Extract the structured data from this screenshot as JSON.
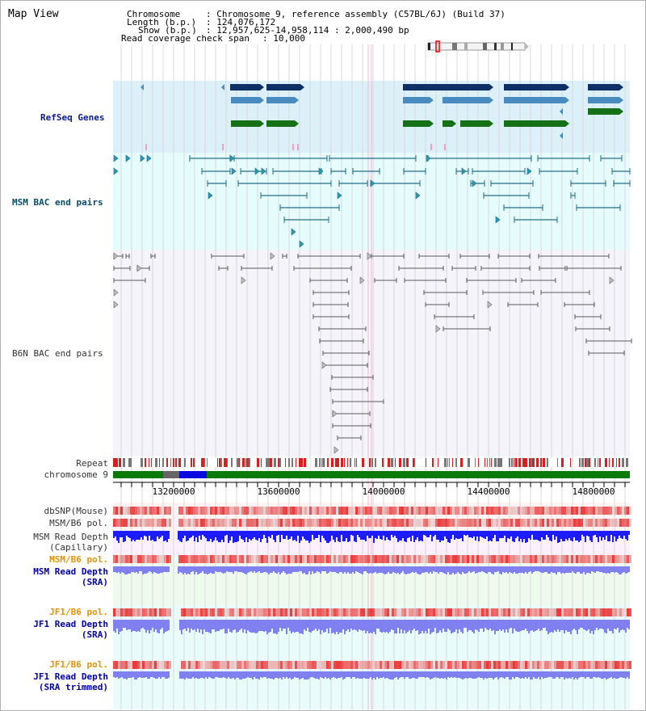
{
  "title": "Map View",
  "header": {
    "chromosome_key": "Chromosome",
    "chromosome_value": ": Chromosome 9, reference assembly (C57BL/6J) (Build 37)",
    "length_key": "Length (b.p.)",
    "length_value": ": 124,076,172",
    "show_key": "Show (b.p.)",
    "show_value": ": 12,957,625-14,958,114 : 2,000,490 bp",
    "coverage_key": "Read coverage check span",
    "coverage_value": ": 10,000"
  },
  "bands": {
    "refseq": "RefSeq Genes",
    "msm_bac": "MSM BAC end pairs",
    "b6n_bac": "B6N BAC end pairs"
  },
  "tracks": {
    "repeat": "Repeat",
    "chromosome": "chromosome 9",
    "dbsnp": "dbSNP(Mouse)",
    "msm_b6_pol_1": "MSM/B6 pol.",
    "msm_read_depth_cap_1": "MSM Read Depth",
    "msm_read_depth_cap_2": "(Capillary)",
    "msm_b6_pol_2": "MSM/B6 pol.",
    "msm_read_depth_sra_1": "MSM Read Depth",
    "msm_read_depth_sra_2": "(SRA)",
    "jf1_b6_pol_1": "JF1/B6 pol.",
    "jf1_read_depth_sra_1": "JF1 Read Depth",
    "jf1_read_depth_sra_2": "(SRA)",
    "jf1_b6_pol_2": "JF1/B6 pol.",
    "jf1_read_depth_trim_1": "JF1 Read Depth",
    "jf1_read_depth_trim_2": "(SRA trimmed)"
  },
  "axis_ticks": [
    "13200000",
    "13600000",
    "14000000",
    "14400000",
    "14800000"
  ],
  "colors": {
    "refseq_bg": "#dcf0fa",
    "bac_bg": "#e6fcfc",
    "b6n_bg": "#f4f4fa",
    "gene_dark": "#0d2f66",
    "gene_mid": "#4a8bbf",
    "gene_green": "#167016",
    "msm_bac": "#1f6e88",
    "b6n_bac": "#5a5a5a",
    "repeat_red": "#d81e1e",
    "chrom_green": "#0a7a0a",
    "chrom_blue": "#0a0ae0",
    "depth_blue": "#1c1cff",
    "depth_light": "#8080f0",
    "pol_red": "#e23030"
  }
}
